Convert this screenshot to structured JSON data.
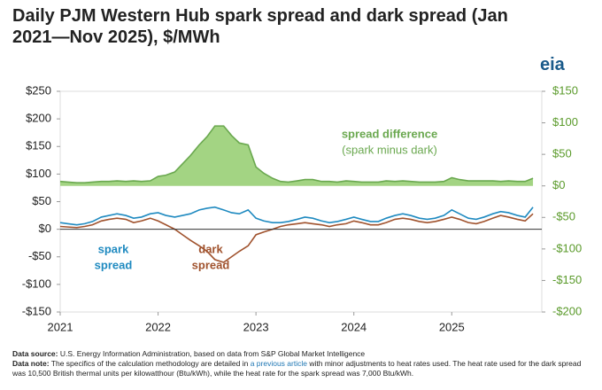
{
  "title": "Daily PJM Western Hub spark spread and dark spread (Jan 2021—Nov 2025), $/MWh",
  "logo": "eia",
  "chart_data": {
    "type": "line",
    "x": [
      2021.0,
      2021.08,
      2021.17,
      2021.25,
      2021.33,
      2021.42,
      2021.5,
      2021.58,
      2021.67,
      2021.75,
      2021.83,
      2021.92,
      2022.0,
      2022.08,
      2022.17,
      2022.25,
      2022.33,
      2022.42,
      2022.5,
      2022.58,
      2022.67,
      2022.75,
      2022.83,
      2022.92,
      2023.0,
      2023.08,
      2023.17,
      2023.25,
      2023.33,
      2023.42,
      2023.5,
      2023.58,
      2023.67,
      2023.75,
      2023.83,
      2023.92,
      2024.0,
      2024.08,
      2024.17,
      2024.25,
      2024.33,
      2024.42,
      2024.5,
      2024.58,
      2024.67,
      2024.75,
      2024.83,
      2024.92,
      2025.0,
      2025.08,
      2025.17,
      2025.25,
      2025.33,
      2025.42,
      2025.5,
      2025.58,
      2025.67,
      2025.75,
      2025.83
    ],
    "series": [
      {
        "name": "spread difference",
        "color": "#6aa84f",
        "fill": "#a3d483",
        "axis": "y2",
        "values": [
          7,
          6,
          5,
          5,
          6,
          7,
          7,
          8,
          7,
          8,
          7,
          8,
          15,
          17,
          22,
          35,
          48,
          65,
          78,
          95,
          95,
          80,
          68,
          65,
          30,
          20,
          12,
          7,
          6,
          8,
          10,
          10,
          7,
          7,
          6,
          8,
          7,
          6,
          6,
          6,
          8,
          7,
          8,
          7,
          6,
          6,
          6,
          7,
          13,
          10,
          8,
          8,
          8,
          8,
          7,
          8,
          7,
          7,
          12
        ]
      },
      {
        "name": "dark spread",
        "color": "#a0522d",
        "values": [
          5,
          4,
          3,
          5,
          8,
          15,
          18,
          20,
          18,
          12,
          15,
          20,
          15,
          8,
          0,
          -10,
          -20,
          -30,
          -40,
          -55,
          -60,
          -50,
          -40,
          -30,
          -10,
          -5,
          0,
          5,
          8,
          10,
          12,
          10,
          8,
          5,
          8,
          10,
          15,
          12,
          8,
          8,
          12,
          18,
          20,
          18,
          14,
          12,
          14,
          18,
          22,
          18,
          12,
          10,
          14,
          20,
          25,
          22,
          18,
          15,
          28
        ]
      },
      {
        "name": "spark spread",
        "color": "#1f8ac0",
        "values": [
          12,
          10,
          8,
          10,
          14,
          22,
          25,
          28,
          25,
          20,
          22,
          28,
          30,
          25,
          22,
          25,
          28,
          35,
          38,
          40,
          35,
          30,
          28,
          35,
          20,
          15,
          12,
          12,
          14,
          18,
          22,
          20,
          15,
          12,
          14,
          18,
          22,
          18,
          14,
          14,
          20,
          25,
          28,
          25,
          20,
          18,
          20,
          25,
          35,
          28,
          20,
          18,
          22,
          28,
          32,
          30,
          25,
          22,
          40
        ]
      }
    ],
    "annotations": [
      "spread difference",
      "(spark minus dark)",
      "spark",
      "spread",
      "dark",
      "spread"
    ],
    "xlim": [
      2021,
      2025.92
    ],
    "xticks": [
      2021,
      2022,
      2023,
      2024,
      2025
    ],
    "ylim": [
      -150,
      250
    ],
    "yticks": [
      {
        "value": -150,
        "label": "-$150"
      },
      {
        "value": -100,
        "label": "-$100"
      },
      {
        "value": -50,
        "label": "-$50"
      },
      {
        "value": 0,
        "label": "$0"
      },
      {
        "value": 50,
        "label": "$50"
      },
      {
        "value": 100,
        "label": "$100"
      },
      {
        "value": 150,
        "label": "$150"
      },
      {
        "value": 200,
        "label": "$200"
      },
      {
        "value": 250,
        "label": "$250"
      }
    ],
    "y2lim": [
      -200,
      150
    ],
    "y2ticks": [
      {
        "value": -200,
        "label": "-$200"
      },
      {
        "value": -150,
        "label": "-$150"
      },
      {
        "value": -100,
        "label": "-$100"
      },
      {
        "value": -50,
        "label": "-$50"
      },
      {
        "value": 0,
        "label": "$0"
      },
      {
        "value": 50,
        "label": "$50"
      },
      {
        "value": 100,
        "label": "$100"
      },
      {
        "value": 150,
        "label": "$150"
      }
    ],
    "y2color": "#5a9a2a",
    "grid": false
  },
  "footer": {
    "source_label": "Data source:",
    "source": "U.S. Energy Information Administration, based on data from S&P Global Market Intelligence",
    "note_label": "Data note:",
    "note_before": "The specifics of the calculation methodology are detailed in",
    "note_link": "a previous article",
    "note_after": "with minor adjustments to heat rates used. The heat rate used for the dark spread was 10,500 British thermal units per kilowatthour (Btu/kWh), while the heat rate for the spark spread was 7,000 Btu/kWh."
  }
}
